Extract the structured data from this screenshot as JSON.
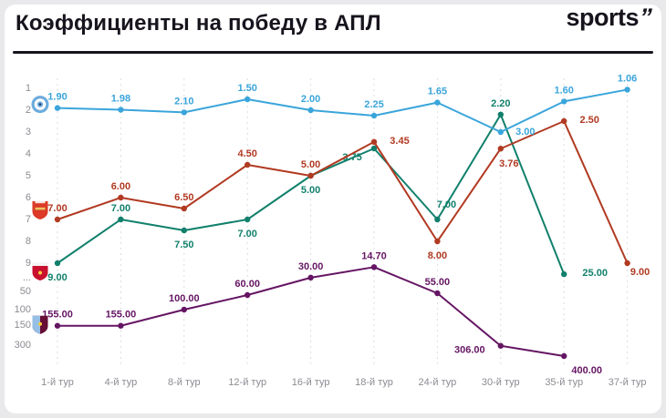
{
  "header": {
    "title": "Коэффициенты на победу в АПЛ",
    "logo_text": "sports",
    "logo_mark": "”"
  },
  "chart_data": {
    "type": "line",
    "title": "Коэффициенты на победу в АПЛ",
    "y_axis_inverted": true,
    "y_scale": "betting odds; 1–9 linear, compressed above (50, 100, 150, 300)",
    "value_label_decimals": 2,
    "categories": [
      "1-й тур",
      "4-й тур",
      "8-й тур",
      "12-й тур",
      "16-й тур",
      "18-й тур",
      "24-й тур",
      "30-й тур",
      "35-й тур",
      "37-й тур"
    ],
    "y_ticks": [
      "1",
      "2",
      "3",
      "4",
      "5",
      "6",
      "7",
      "8",
      "9",
      "...",
      "50",
      "100",
      "150",
      "300"
    ],
    "grid": true,
    "style": {
      "grid_color": "#dcdce0",
      "axis_text_color": "#8b8b92",
      "divider_color": "#18141e"
    },
    "series": [
      {
        "id": "man-city",
        "name": "Manchester City",
        "badge": "manchester-city-badge",
        "color": "#3AA5DB",
        "values": [
          1.9,
          1.98,
          2.1,
          1.5,
          2,
          2.25,
          1.65,
          3,
          1.6,
          1.06
        ]
      },
      {
        "id": "arsenal",
        "name": "Arsenal",
        "badge": "arsenal-badge",
        "color": "#B13A22",
        "values": [
          7,
          6,
          6.5,
          4.5,
          5,
          3.45,
          8,
          3.76,
          2.5,
          9
        ]
      },
      {
        "id": "liverpool",
        "name": "Liverpool",
        "badge": "liverpool-badge",
        "color": "#11806C",
        "values": [
          9,
          7,
          7.5,
          7,
          5,
          3.75,
          7,
          2.2,
          25,
          null
        ]
      },
      {
        "id": "aston-villa",
        "name": "Aston Villa",
        "badge": "aston-villa-badge",
        "color": "#651563",
        "values": [
          155,
          155,
          100,
          60,
          30,
          14.7,
          55,
          306,
          400,
          null
        ]
      }
    ]
  }
}
